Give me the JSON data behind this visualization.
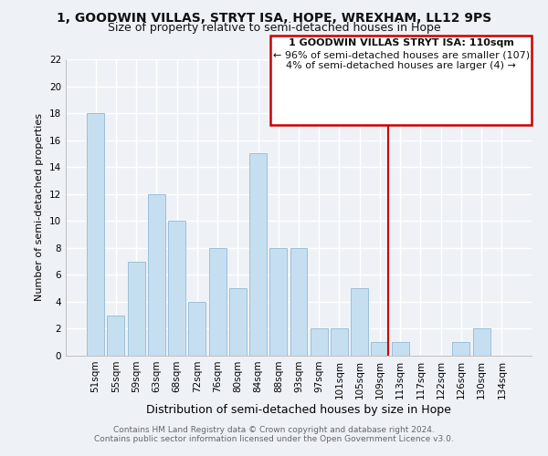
{
  "title": "1, GOODWIN VILLAS, STRYT ISA, HOPE, WREXHAM, LL12 9PS",
  "subtitle": "Size of property relative to semi-detached houses in Hope",
  "xlabel": "Distribution of semi-detached houses by size in Hope",
  "ylabel": "Number of semi-detached properties",
  "bar_labels": [
    "51sqm",
    "55sqm",
    "59sqm",
    "63sqm",
    "68sqm",
    "72sqm",
    "76sqm",
    "80sqm",
    "84sqm",
    "88sqm",
    "93sqm",
    "97sqm",
    "101sqm",
    "105sqm",
    "109sqm",
    "113sqm",
    "117sqm",
    "122sqm",
    "126sqm",
    "130sqm",
    "134sqm"
  ],
  "bar_values": [
    18,
    3,
    7,
    12,
    10,
    4,
    8,
    5,
    15,
    8,
    8,
    2,
    2,
    5,
    1,
    1,
    0,
    0,
    1,
    2,
    0
  ],
  "bar_color": "#c6dff0",
  "bar_edge_color": "#9bbfda",
  "background_color": "#eef2f7",
  "plot_bg_color": "#eef2f7",
  "grid_color": "#ffffff",
  "vline_index": 14,
  "vline_color": "#cc0000",
  "ylim": [
    0,
    22
  ],
  "ytick_max": 22,
  "ytick_step": 2,
  "annotation_title": "1 GOODWIN VILLAS STRYT ISA: 110sqm",
  "annotation_line1": "← 96% of semi-detached houses are smaller (107)",
  "annotation_line2": "4% of semi-detached houses are larger (4) →",
  "annotation_box_color": "#ffffff",
  "annotation_box_edge": "#cc0000",
  "footer_line1": "Contains HM Land Registry data © Crown copyright and database right 2024.",
  "footer_line2": "Contains public sector information licensed under the Open Government Licence v3.0.",
  "title_fontsize": 10,
  "subtitle_fontsize": 9,
  "xlabel_fontsize": 9,
  "ylabel_fontsize": 8,
  "tick_fontsize": 7.5,
  "annotation_title_fontsize": 8,
  "annotation_text_fontsize": 8,
  "footer_fontsize": 6.5
}
